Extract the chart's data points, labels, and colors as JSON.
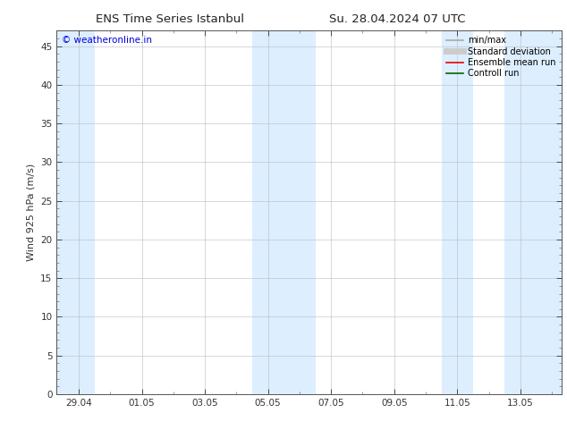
{
  "title_left": "ENS Time Series Istanbul",
  "title_right": "Su. 28.04.2024 07 UTC",
  "ylabel": "Wind 925 hPa (m/s)",
  "watermark": "© weatheronline.in",
  "watermark_color": "#0000dd",
  "ylim": [
    0,
    47
  ],
  "yticks": [
    0,
    5,
    10,
    15,
    20,
    25,
    30,
    35,
    40,
    45
  ],
  "xtick_labels": [
    "29.04",
    "01.05",
    "03.05",
    "05.05",
    "07.05",
    "09.05",
    "11.05",
    "13.05"
  ],
  "xtick_positions": [
    0,
    2,
    4,
    6,
    8,
    10,
    12,
    14
  ],
  "xlim": [
    -0.7,
    15.3
  ],
  "shaded_bands": [
    {
      "x_start": -0.7,
      "x_end": 0.5,
      "color": "#ddeeff"
    },
    {
      "x_start": 5.5,
      "x_end": 6.5,
      "color": "#ddeeff"
    },
    {
      "x_start": 6.5,
      "x_end": 7.5,
      "color": "#ddeeff"
    },
    {
      "x_start": 11.5,
      "x_end": 12.5,
      "color": "#ddeeff"
    },
    {
      "x_start": 13.5,
      "x_end": 15.3,
      "color": "#ddeeff"
    }
  ],
  "legend_entries": [
    {
      "label": "min/max",
      "color": "#a8a8a8",
      "linewidth": 1.2
    },
    {
      "label": "Standard deviation",
      "color": "#cccccc",
      "linewidth": 5.0
    },
    {
      "label": "Ensemble mean run",
      "color": "#ee0000",
      "linewidth": 1.2
    },
    {
      "label": "Controll run",
      "color": "#006600",
      "linewidth": 1.2
    }
  ],
  "background_color": "#ffffff",
  "spine_color": "#555555",
  "title_fontsize": 9.5,
  "ylabel_fontsize": 8,
  "tick_fontsize": 7.5,
  "legend_fontsize": 7,
  "watermark_fontsize": 7.5
}
